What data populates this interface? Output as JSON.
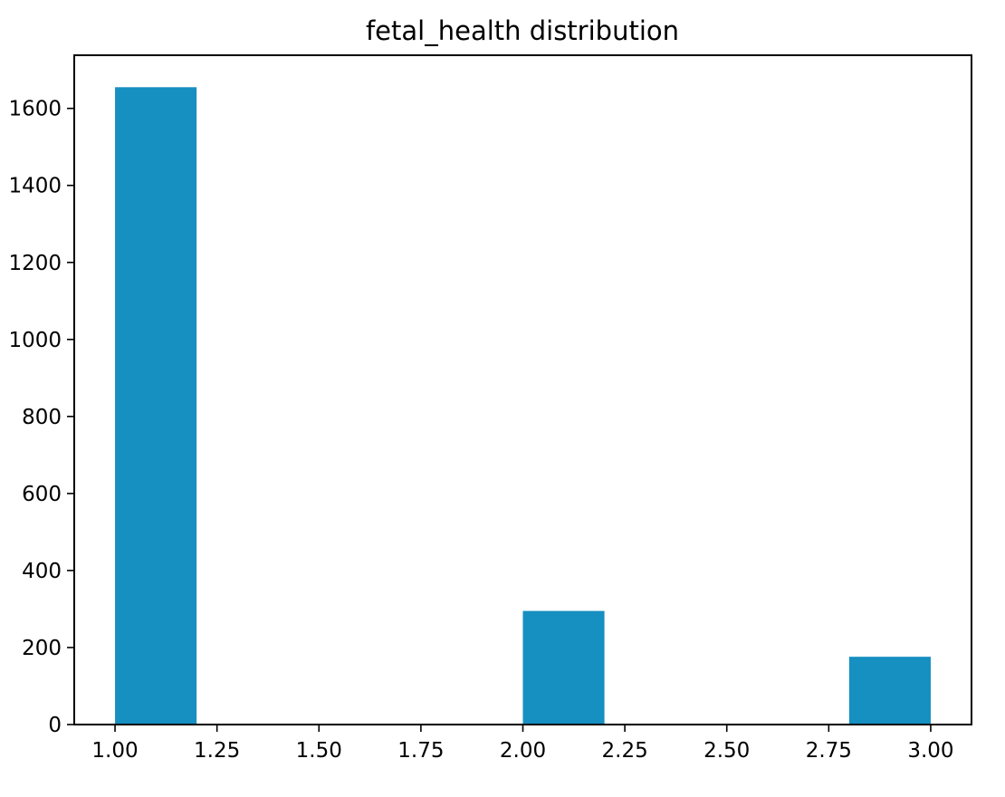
{
  "chart_data": {
    "type": "bar",
    "title": "fetal_health distribution",
    "xlabel": "",
    "ylabel": "",
    "bin_edges": [
      1.0,
      1.2,
      1.4,
      1.6,
      1.8,
      2.0,
      2.2,
      2.4,
      2.6,
      2.8,
      3.0
    ],
    "counts": [
      1655,
      0,
      0,
      0,
      0,
      295,
      0,
      0,
      0,
      176
    ],
    "xlim": [
      0.9,
      3.1
    ],
    "ylim": [
      0,
      1738
    ],
    "x_ticks": [
      1.0,
      1.25,
      1.5,
      1.75,
      2.0,
      2.25,
      2.5,
      2.75,
      3.0
    ],
    "x_tick_labels": [
      "1.00",
      "1.25",
      "1.50",
      "1.75",
      "2.00",
      "2.25",
      "2.50",
      "2.75",
      "3.00"
    ],
    "y_ticks": [
      0,
      200,
      400,
      600,
      800,
      1000,
      1200,
      1400,
      1600
    ],
    "y_tick_labels": [
      "0",
      "200",
      "400",
      "600",
      "800",
      "1000",
      "1200",
      "1400",
      "1600"
    ],
    "grid": false,
    "bar_color": "#168fc1"
  }
}
